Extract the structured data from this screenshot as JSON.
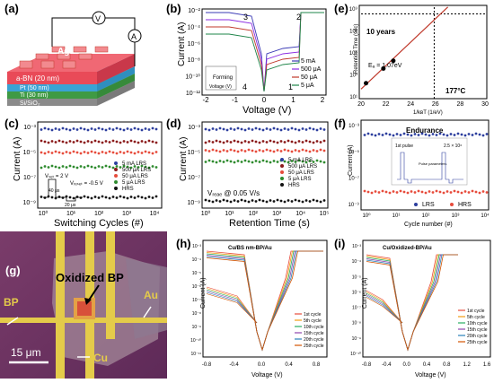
{
  "panels": {
    "a": {
      "label": "(a)",
      "layers": [
        {
          "text": "Ag",
          "color": "#e94d55"
        },
        {
          "text": "a-BN (20 nm)",
          "color": "#e6405a"
        },
        {
          "text": "Pt (50 nm)",
          "color": "#47b2e6"
        },
        {
          "text": "Ti (30 nm)",
          "color": "#4caf50"
        },
        {
          "text": "Si/SiO₂",
          "color": "#9e9e9e"
        }
      ],
      "meter_v": "V",
      "meter_a": "A"
    },
    "b": {
      "label": "(b)",
      "ylabel": "Current (A)",
      "xlabel": "Voltage (V)",
      "yticks": [
        "10⁻²",
        "10⁻⁴",
        "10⁻⁶",
        "10⁻⁸",
        "10⁻¹⁰",
        "10⁻¹²"
      ],
      "xticks": [
        "-2",
        "-1",
        "0",
        "1",
        "2"
      ],
      "arrow_labels": [
        "1",
        "2",
        "3",
        "4"
      ],
      "inset_label": "Forming",
      "inset_xlabel": "Voltage (V)",
      "legend": [
        "5 mA",
        "500 μA",
        "50 μA",
        "5 μA"
      ],
      "colors": [
        "#3a3ab5",
        "#8a2be2",
        "#c0392b",
        "#1e8449"
      ]
    },
    "c": {
      "label": "(c)",
      "ylabel": "Current (A)",
      "xlabel": "Switching Cycles (#)",
      "yticks": [
        "10⁻³",
        "10⁻⁵",
        "10⁻⁷",
        "10⁻⁹"
      ],
      "xticks": [
        "10⁰",
        "10¹",
        "10²",
        "10³",
        "10⁴"
      ],
      "legend": [
        "5 mA LRS",
        "500 μA LRS",
        "50 μA LRS",
        "5 μA LRS",
        "HRS"
      ],
      "colors": [
        "#2c3e9e",
        "#8b1a1a",
        "#e74c3c",
        "#2e8b2e",
        "#111111"
      ],
      "pulse_labels": [
        "Vₛₑₜ = 2 V",
        "Vᵣₑₛₑₜ = -0.5 V",
        "40 μs",
        "20 μs"
      ]
    },
    "d": {
      "label": "(d)",
      "ylabel": "Current (A)",
      "xlabel": "Retention Time (s)",
      "yticks": [
        "10⁻³",
        "10⁻⁵",
        "10⁻⁷",
        "10⁻⁹"
      ],
      "xticks": [
        "10⁰",
        "10¹",
        "10²",
        "10³",
        "10⁴",
        "10⁵"
      ],
      "legend": [
        "5 mA LRS",
        "500 μA LRS",
        "50 μA LRS",
        "5 μA LRS",
        "HRS"
      ],
      "read_label": "Vᵣₑₐₑ @ 0.05 V/s",
      "colors": [
        "#2c3e9e",
        "#8b1a1a",
        "#e74c3c",
        "#2e8b2e",
        "#111111"
      ]
    },
    "e": {
      "label": "(e)",
      "ylabel": "Retention Time (sec)",
      "xlabel": "1/kʙT (1/eV)",
      "yticks": [
        "10⁹",
        "10⁷",
        "10⁵",
        "10³",
        "10¹"
      ],
      "xticks": [
        "20",
        "22",
        "24",
        "26",
        "28",
        "30"
      ],
      "annot_years": "10 years",
      "annot_ea": "Eₐ = 1.07eV",
      "annot_temp": "177°C",
      "points": [
        {
          "x": 20.4,
          "y": 1.4
        },
        {
          "x": 21.8,
          "y": 2.9
        },
        {
          "x": 22.6,
          "y": 3.7
        }
      ]
    },
    "f": {
      "label": "(f)",
      "title": "Endurance",
      "ylabel": "Current (A)",
      "xlabel": "Cycle number (#)",
      "yticks": [
        "10⁻³",
        "10⁻⁵",
        "10⁻⁷",
        "10⁻⁹"
      ],
      "xticks": [
        "10⁰",
        "10¹",
        "10²",
        "10³",
        "10⁴"
      ],
      "legend": [
        "LRS",
        "HRS"
      ],
      "colors": [
        "#2c3e9e",
        "#e74c3c"
      ],
      "inset_left": "1st pulse",
      "inset_right": "2.5 × 10⁶",
      "inset_box": "Pulse parameters"
    },
    "g": {
      "label": "(g)",
      "title": "Oxidized BP",
      "label_bp": "BP",
      "label_au": "Au",
      "label_cu": "Cu",
      "scale": "15 μm"
    },
    "h": {
      "label": "(h)",
      "title": "Cu/BS nm-BP/Au",
      "ylabel": "Current (A)",
      "xlabel": "Voltage (V)",
      "yticks": [
        "10⁻³",
        "10⁻⁴",
        "10⁻⁵",
        "10⁻⁶",
        "10⁻⁷",
        "10⁻⁸",
        "10⁻⁹",
        "10⁻¹⁰",
        "10⁻¹¹"
      ],
      "xticks": [
        "-0.8",
        "-0.4",
        "0.0",
        "0.4",
        "0.8"
      ],
      "legend": [
        "1st cycle",
        "5th cycle",
        "10th cycle",
        "15th cycle",
        "20th cycle",
        "25th cycle"
      ],
      "colors": [
        "#e74c3c",
        "#f39c12",
        "#27ae60",
        "#8e44ad",
        "#2980b9",
        "#d35400"
      ]
    },
    "i": {
      "label": "(i)",
      "title": "Cu/Oxidized-BP/Au",
      "ylabel": "Current (A)",
      "xlabel": "Voltage (V)",
      "yticks": [
        "10⁻³",
        "10⁻⁴",
        "10⁻⁵",
        "10⁻⁶",
        "10⁻⁷",
        "10⁻⁸",
        "10⁻⁹",
        "10⁻¹⁰"
      ],
      "xticks": [
        "-0.8",
        "-0.4",
        "0.0",
        "0.4",
        "0.8",
        "1.2",
        "1.6"
      ],
      "legend": [
        "1st cycle",
        "5th cycle",
        "10th cycle",
        "15th cycle",
        "20th cycle",
        "25th cycle"
      ],
      "colors": [
        "#e74c3c",
        "#f39c12",
        "#27ae60",
        "#8e44ad",
        "#2980b9",
        "#d35400"
      ]
    }
  }
}
